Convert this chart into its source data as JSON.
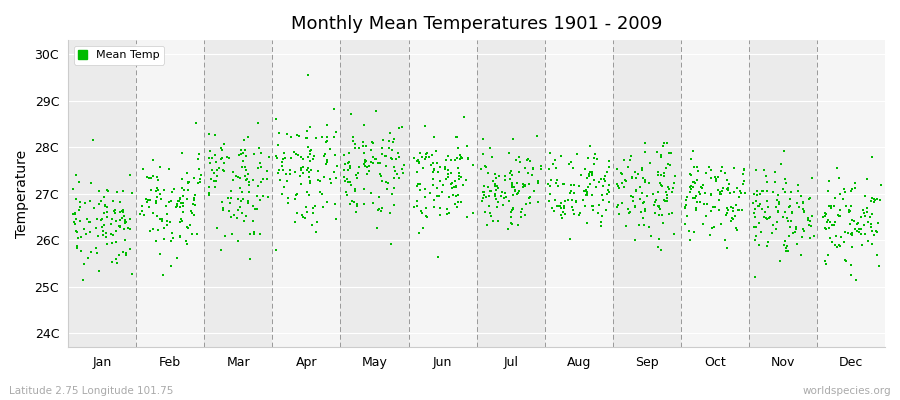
{
  "title": "Monthly Mean Temperatures 1901 - 2009",
  "ylabel": "Temperature",
  "ytick_labels": [
    "24C",
    "25C",
    "26C",
    "27C",
    "28C",
    "29C",
    "30C"
  ],
  "ytick_values": [
    24,
    25,
    26,
    27,
    28,
    29,
    30
  ],
  "ylim": [
    23.7,
    30.3
  ],
  "months": [
    "Jan",
    "Feb",
    "Mar",
    "Apr",
    "May",
    "Jun",
    "Jul",
    "Aug",
    "Sep",
    "Oct",
    "Nov",
    "Dec"
  ],
  "month_tick_positions": [
    0.5,
    1.5,
    2.5,
    3.5,
    4.5,
    5.5,
    6.5,
    7.5,
    8.5,
    9.5,
    10.5,
    11.5
  ],
  "dashed_lines": [
    1,
    2,
    3,
    4,
    5,
    6,
    7,
    8,
    9,
    10,
    11
  ],
  "dot_color": "#00bb00",
  "dot_size": 2,
  "legend_label": "Mean Temp",
  "background_color": "#efefef",
  "stripe_colors": [
    "#ebebeb",
    "#f5f5f5"
  ],
  "subtitle_left": "Latitude 2.75 Longitude 101.75",
  "subtitle_right": "worldspecies.org",
  "n_years": 109,
  "monthly_means": [
    26.4,
    26.9,
    27.2,
    27.5,
    27.6,
    27.3,
    27.1,
    27.0,
    27.0,
    26.9,
    26.6,
    26.4
  ],
  "monthly_stds": [
    0.55,
    0.6,
    0.55,
    0.55,
    0.55,
    0.45,
    0.45,
    0.45,
    0.45,
    0.45,
    0.45,
    0.5
  ],
  "seed": 17
}
